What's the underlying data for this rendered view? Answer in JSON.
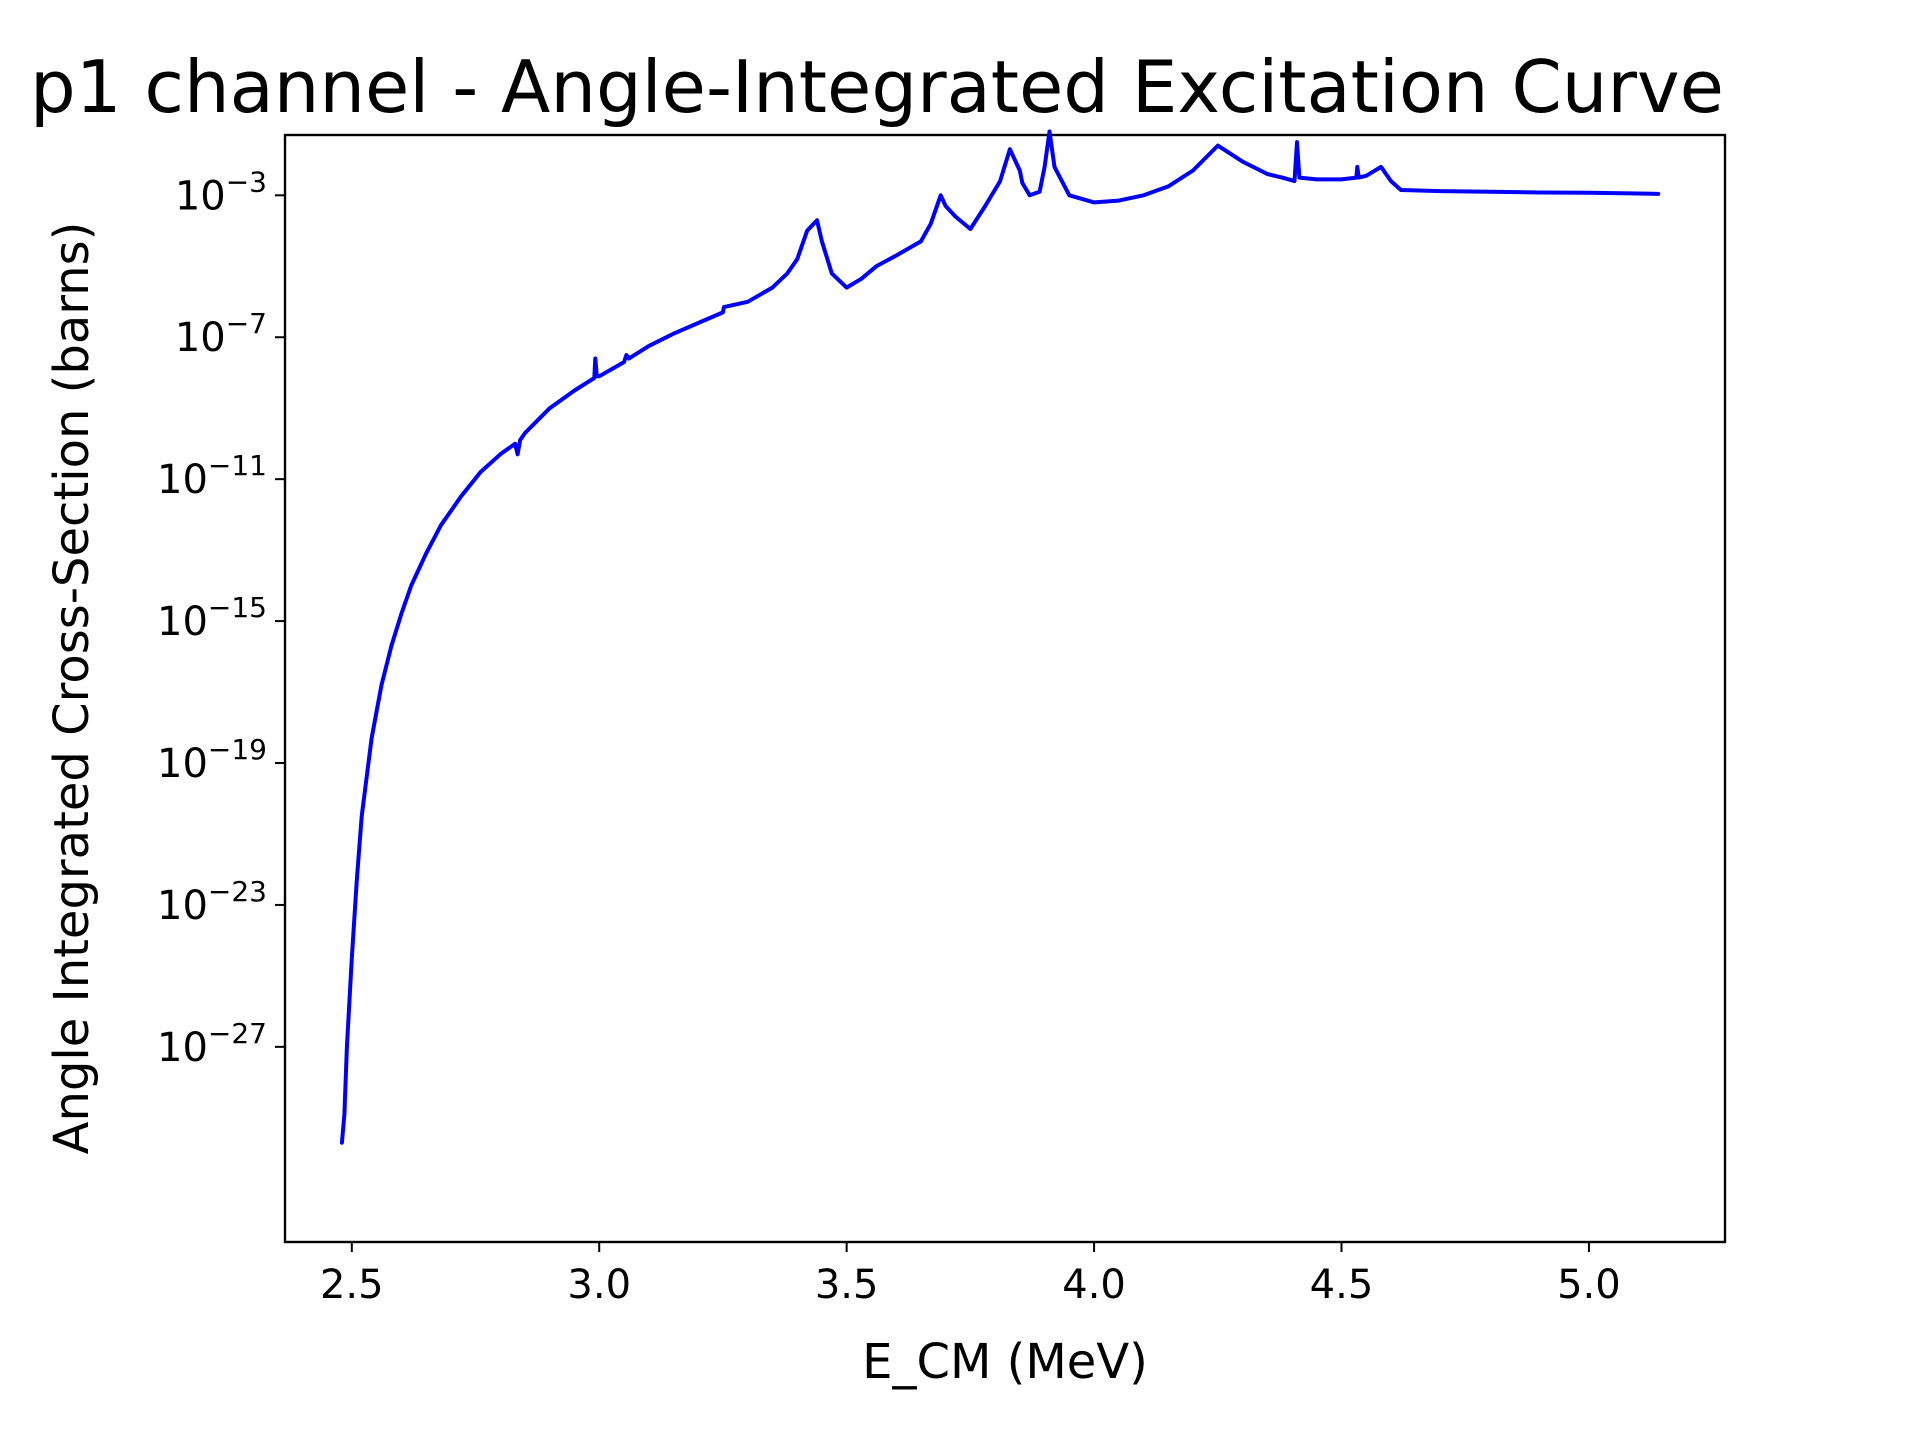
{
  "chart_data": {
    "type": "line",
    "title": "p1 channel - Angle-Integrated Excitation Curve",
    "xlabel": "E_CM (MeV)",
    "ylabel": "Angle Integrated Cross-Section (barns)",
    "xscale": "linear",
    "yscale": "log",
    "xlim": [
      2.365,
      5.275
    ],
    "ylim_log10": [
      -32.5,
      -1.3
    ],
    "xticks": [
      2.5,
      3.0,
      3.5,
      4.0,
      4.5,
      5.0
    ],
    "xtick_labels": [
      "2.5",
      "3.0",
      "3.5",
      "4.0",
      "4.5",
      "5.0"
    ],
    "yticks_log10": [
      -27,
      -23,
      -19,
      -15,
      -11,
      -7,
      -3
    ],
    "ytick_labels": [
      {
        "base": "10",
        "exp": "−27"
      },
      {
        "base": "10",
        "exp": "−23"
      },
      {
        "base": "10",
        "exp": "−19"
      },
      {
        "base": "10",
        "exp": "−15"
      },
      {
        "base": "10",
        "exp": "−11"
      },
      {
        "base": "10",
        "exp": "−7"
      },
      {
        "base": "10",
        "exp": "−3"
      }
    ],
    "grid": false,
    "legend": "none",
    "series": [
      {
        "color": "#0000ff",
        "x": [
          2.48,
          2.485,
          2.49,
          2.5,
          2.51,
          2.52,
          2.54,
          2.56,
          2.58,
          2.6,
          2.62,
          2.65,
          2.68,
          2.72,
          2.76,
          2.8,
          2.83,
          2.835,
          2.84,
          2.85,
          2.9,
          2.95,
          2.99,
          2.992,
          2.995,
          3.0,
          3.05,
          3.055,
          3.06,
          3.1,
          3.15,
          3.2,
          3.25,
          3.252,
          3.3,
          3.35,
          3.38,
          3.4,
          3.42,
          3.44,
          3.45,
          3.47,
          3.5,
          3.53,
          3.56,
          3.6,
          3.65,
          3.67,
          3.69,
          3.7,
          3.72,
          3.75,
          3.78,
          3.81,
          3.83,
          3.85,
          3.855,
          3.87,
          3.89,
          3.9,
          3.91,
          3.92,
          3.95,
          4.0,
          4.05,
          4.1,
          4.15,
          4.2,
          4.25,
          4.3,
          4.35,
          4.38,
          4.405,
          4.41,
          4.415,
          4.45,
          4.5,
          4.53,
          4.532,
          4.535,
          4.55,
          4.58,
          4.59,
          4.6,
          4.62,
          4.7,
          4.8,
          4.9,
          5.0,
          5.1,
          5.14
        ],
        "log10_y": [
          -29.7,
          -28.9,
          -27.0,
          -24.5,
          -22.3,
          -20.5,
          -18.3,
          -16.8,
          -15.7,
          -14.8,
          -14.0,
          -13.1,
          -12.3,
          -11.5,
          -10.8,
          -10.3,
          -10.0,
          -10.3,
          -9.9,
          -9.7,
          -9.0,
          -8.5,
          -8.15,
          -7.6,
          -8.1,
          -8.1,
          -7.7,
          -7.5,
          -7.6,
          -7.25,
          -6.9,
          -6.6,
          -6.3,
          -6.15,
          -6.0,
          -5.6,
          -5.2,
          -4.8,
          -4.0,
          -3.7,
          -4.3,
          -5.2,
          -5.6,
          -5.35,
          -5.0,
          -4.7,
          -4.3,
          -3.8,
          -3.0,
          -3.3,
          -3.6,
          -3.95,
          -3.3,
          -2.6,
          -1.7,
          -2.3,
          -2.65,
          -3.0,
          -2.9,
          -2.2,
          -1.2,
          -2.2,
          -3.0,
          -3.2,
          -3.15,
          -3.0,
          -2.75,
          -2.3,
          -1.6,
          -2.05,
          -2.4,
          -2.5,
          -2.6,
          -1.5,
          -2.5,
          -2.55,
          -2.55,
          -2.5,
          -2.2,
          -2.5,
          -2.45,
          -2.2,
          -2.4,
          -2.6,
          -2.85,
          -2.88,
          -2.9,
          -2.92,
          -2.93,
          -2.95,
          -2.96
        ]
      }
    ]
  }
}
